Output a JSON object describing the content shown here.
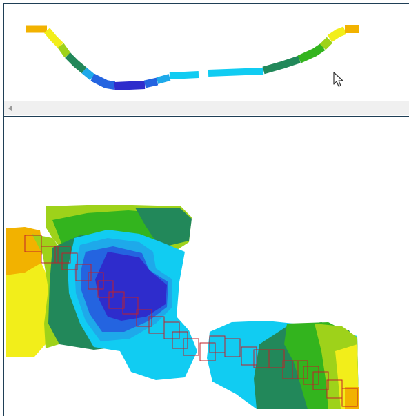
{
  "colors": {
    "frame_border": "#1f3f56",
    "scrollbar_bg": "#f0f0f0",
    "arrow": "#9a9a9a",
    "survey_box_stroke": "#c0202a",
    "orange": "#f2b200",
    "yellow": "#f2ee1a",
    "yellow_green": "#9ed21a",
    "green": "#33b41e",
    "dark_green": "#22885a",
    "cyan": "#11ccf2",
    "light_blue": "#1ea9ea",
    "blue": "#2464e0",
    "indigo": "#2e2ccc"
  },
  "icons": {
    "scroll_left": "triangle-left-icon",
    "cursor": "mouse-pointer-icon"
  }
}
